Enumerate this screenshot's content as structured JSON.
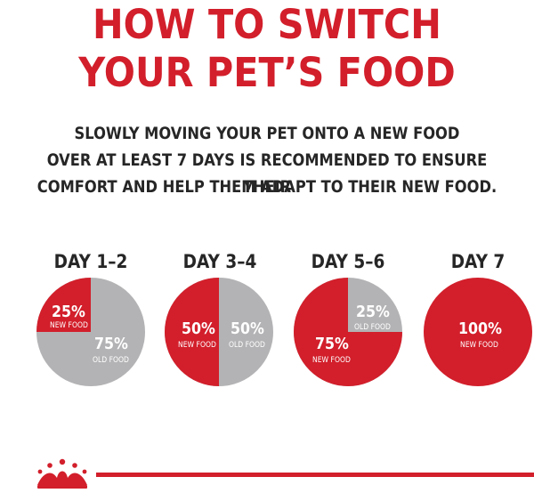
{
  "title": {
    "line1": "HOW TO SWITCH",
    "line2": "YOUR PET’S FOOD"
  },
  "subtitle": {
    "line1": "SLOWLY MOVING YOUR PET ONTO A NEW FOOD",
    "line2": "OVER AT LEAST 7 DAYS IS RECOMMENDED TO ENSURE THEIR",
    "line3": "COMFORT AND HELP THEM ADAPT TO THEIR NEW FOOD."
  },
  "colors": {
    "red": "#d21f2b",
    "grey": "#b3b3b5",
    "text": "#262626"
  },
  "logo": "royal-canin-crown-icon",
  "days": [
    {
      "label": "DAY 1–2",
      "new_pct": 25,
      "old_pct": 75,
      "new_text": "25%",
      "new_caption": "NEW FOOD",
      "old_text": "75%",
      "old_caption": "OLD FOOD"
    },
    {
      "label": "DAY 3–4",
      "new_pct": 50,
      "old_pct": 50,
      "new_text": "50%",
      "new_caption": "NEW FOOD",
      "old_text": "50%",
      "old_caption": "OLD FOOD"
    },
    {
      "label": "DAY 5–6",
      "new_pct": 75,
      "old_pct": 25,
      "new_text": "75%",
      "new_caption": "NEW FOOD",
      "old_text": "25%",
      "old_caption": "OLD FOOD"
    },
    {
      "label": "DAY 7",
      "new_pct": 100,
      "old_pct": 0,
      "new_text": "100%",
      "new_caption": "NEW FOOD"
    }
  ]
}
